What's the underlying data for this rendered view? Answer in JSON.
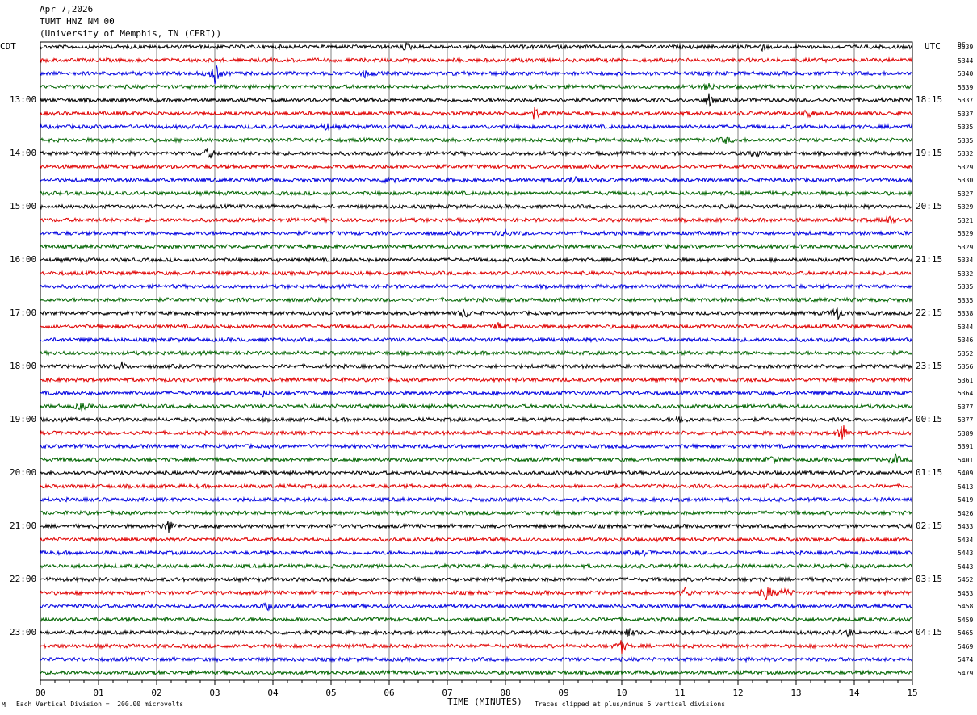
{
  "header": {
    "date": "Apr 7,2026",
    "station": "TUMT HNZ NM 00",
    "network": "(University of Memphis, TN (CERI))"
  },
  "left_axis_label": "CDT",
  "right_axis_label": "UTC",
  "dc_label": "DC",
  "footer": {
    "scale_note": "Each Vertical Division =  200.00 microvolts",
    "clip_note": "Traces clipped at plus/minus 5 vertical divisions",
    "corner_mark": "M"
  },
  "colors": {
    "trace_cycle": [
      "#000000",
      "#e00000",
      "#0000e0",
      "#006400"
    ],
    "grid": "#808080"
  },
  "chart_data": {
    "type": "line",
    "title": "",
    "xlabel": "TIME (MINUTES)",
    "xlim": [
      0,
      15
    ],
    "x_ticks": [
      "00",
      "01",
      "02",
      "03",
      "04",
      "05",
      "06",
      "07",
      "08",
      "09",
      "10",
      "11",
      "12",
      "13",
      "14",
      "15"
    ],
    "left_time_labels": [
      "13:00",
      "14:00",
      "15:00",
      "16:00",
      "17:00",
      "18:00",
      "19:00",
      "20:00",
      "21:00",
      "22:00",
      "23:00"
    ],
    "right_time_labels": [
      "18:15",
      "19:15",
      "20:15",
      "21:15",
      "22:15",
      "23:15",
      "00:15",
      "01:15",
      "02:15",
      "03:15",
      "04:15"
    ],
    "dc_offsets": [
      5339,
      5344,
      5340,
      5339,
      5337,
      5337,
      5335,
      5335,
      5332,
      5329,
      5330,
      5327,
      5329,
      5321,
      5329,
      5329,
      5334,
      5332,
      5335,
      5335,
      5338,
      5344,
      5346,
      5352,
      5356,
      5361,
      5364,
      5377,
      5377,
      5389,
      5391,
      5401,
      5409,
      5413,
      5419,
      5426,
      5433,
      5434,
      5443,
      5443,
      5452,
      5453,
      5458,
      5459,
      5465,
      5469,
      5474,
      5479
    ],
    "trace_count": 48,
    "events": [
      {
        "trace": 0,
        "minute": 6.3,
        "amp": 4
      },
      {
        "trace": 0,
        "minute": 12.4,
        "amp": 4
      },
      {
        "trace": 2,
        "minute": 3.0,
        "amp": 14
      },
      {
        "trace": 2,
        "minute": 5.6,
        "amp": 5
      },
      {
        "trace": 3,
        "minute": 11.5,
        "amp": 6
      },
      {
        "trace": 4,
        "minute": 11.5,
        "amp": 8
      },
      {
        "trace": 5,
        "minute": 8.5,
        "amp": 9
      },
      {
        "trace": 5,
        "minute": 13.2,
        "amp": 5
      },
      {
        "trace": 6,
        "minute": 4.9,
        "amp": 4
      },
      {
        "trace": 7,
        "minute": 11.8,
        "amp": 4
      },
      {
        "trace": 8,
        "minute": 2.9,
        "amp": 7
      },
      {
        "trace": 8,
        "minute": 12.3,
        "amp": 5
      },
      {
        "trace": 10,
        "minute": 6.0,
        "amp": 7
      },
      {
        "trace": 10,
        "minute": 9.2,
        "amp": 8
      },
      {
        "trace": 13,
        "minute": 14.6,
        "amp": 5
      },
      {
        "trace": 14,
        "minute": 8.0,
        "amp": 5
      },
      {
        "trace": 20,
        "minute": 7.3,
        "amp": 6
      },
      {
        "trace": 20,
        "minute": 13.7,
        "amp": 9
      },
      {
        "trace": 21,
        "minute": 7.9,
        "amp": 5
      },
      {
        "trace": 24,
        "minute": 1.4,
        "amp": 5
      },
      {
        "trace": 26,
        "minute": 3.8,
        "amp": 5
      },
      {
        "trace": 27,
        "minute": 0.7,
        "amp": 4
      },
      {
        "trace": 28,
        "minute": 11.0,
        "amp": 6
      },
      {
        "trace": 29,
        "minute": 13.8,
        "amp": 12
      },
      {
        "trace": 31,
        "minute": 14.7,
        "amp": 7
      },
      {
        "trace": 31,
        "minute": 12.6,
        "amp": 5
      },
      {
        "trace": 36,
        "minute": 2.2,
        "amp": 9
      },
      {
        "trace": 38,
        "minute": 10.4,
        "amp": 4
      },
      {
        "trace": 41,
        "minute": 11.1,
        "amp": 6
      },
      {
        "trace": 41,
        "minute": 12.5,
        "amp": 10
      },
      {
        "trace": 41,
        "minute": 12.8,
        "amp": 6
      },
      {
        "trace": 42,
        "minute": 3.9,
        "amp": 5
      },
      {
        "trace": 44,
        "minute": 10.1,
        "amp": 7
      },
      {
        "trace": 44,
        "minute": 13.9,
        "amp": 5
      },
      {
        "trace": 45,
        "minute": 10.0,
        "amp": 8
      }
    ]
  }
}
